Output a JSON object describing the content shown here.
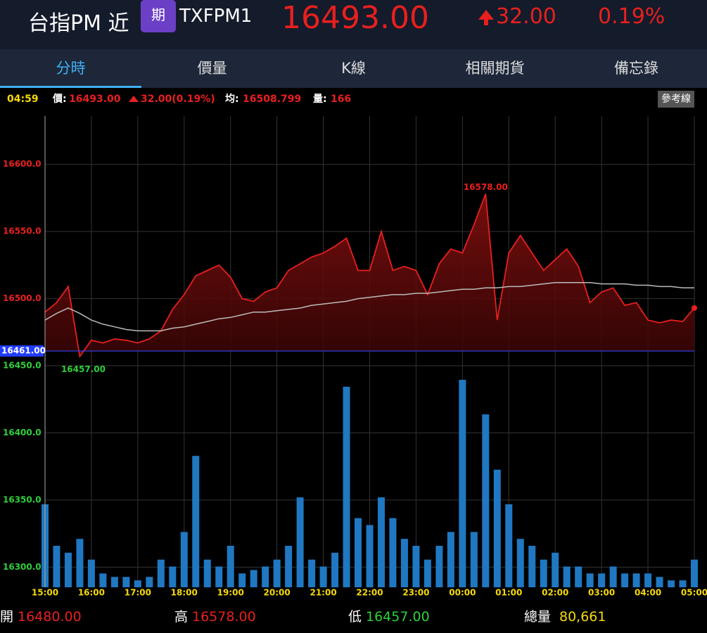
{
  "header": {
    "name": "台指PM 近",
    "badge": "期",
    "code": "TXFPM1",
    "price": "16493.00",
    "change": "32.00",
    "percent": "0.19%"
  },
  "tabs": [
    "分時",
    "價量",
    "K線",
    "相關期貨",
    "備忘錄"
  ],
  "info": {
    "time": "04:59",
    "price_label": "價:",
    "price": "16493.00",
    "change": "32.00(0.19%)",
    "avg_label": "均:",
    "avg": "16508.799",
    "vol_label": "量:",
    "vol": "166",
    "button": "參考線"
  },
  "chart_data": {
    "type": "line",
    "categories": [
      "15:00",
      null,
      null,
      null,
      "16:00",
      null,
      null,
      null,
      "17:00",
      null,
      null,
      null,
      "18:00",
      null,
      null,
      null,
      "19:00",
      null,
      null,
      null,
      "20:00",
      null,
      null,
      null,
      "21:00",
      null,
      null,
      null,
      "22:00",
      null,
      null,
      null,
      "23:00",
      null,
      null,
      null,
      "00:00",
      null,
      null,
      null,
      "01:00",
      null,
      null,
      null,
      "02:00",
      null,
      null,
      null,
      "03:00",
      null,
      null,
      null,
      "04:00",
      null,
      null,
      null,
      "05:00"
    ],
    "series": [
      {
        "color": "#e8201e",
        "values": [
          16490,
          16497,
          16509,
          16457,
          16469,
          16467,
          16470,
          16469,
          16467,
          16470,
          16476,
          16492,
          16503,
          16517,
          16521,
          16525,
          16516,
          16500,
          16498,
          16505,
          16508,
          16521,
          16526,
          16531,
          16534,
          16539,
          16545,
          16521,
          16521,
          16550,
          16521,
          16524,
          16521,
          16503,
          16526,
          16537,
          16534,
          16555,
          16578,
          16484,
          16534,
          16547,
          16534,
          16521,
          16529,
          16537,
          16524,
          16497,
          16505,
          16508,
          16495,
          16497,
          16484,
          16482,
          16484,
          16483,
          16493
        ]
      },
      {
        "color": "#bbbbbb",
        "values": [
          16484,
          16489,
          16493,
          16489,
          16484,
          16481,
          16479,
          16477,
          16476,
          16476,
          16476,
          16478,
          16479,
          16481,
          16483,
          16485,
          16486,
          16488,
          16490,
          16490,
          16491,
          16492,
          16493,
          16495,
          16496,
          16497,
          16498,
          16500,
          16501,
          16502,
          16503,
          16503,
          16504,
          16504,
          16505,
          16506,
          16507,
          16507,
          16508,
          16508,
          16509,
          16509,
          16510,
          16511,
          16512,
          16512,
          16512,
          16512,
          16511,
          16511,
          16511,
          16510,
          16510,
          16509,
          16509,
          16508,
          16508
        ]
      }
    ],
    "volume": {
      "color": "#1f78c1",
      "values": [
        120,
        60,
        50,
        70,
        40,
        20,
        15,
        15,
        10,
        15,
        40,
        30,
        80,
        190,
        40,
        30,
        60,
        20,
        25,
        30,
        40,
        60,
        130,
        40,
        30,
        50,
        290,
        100,
        90,
        130,
        100,
        70,
        60,
        40,
        60,
        80,
        300,
        80,
        250,
        170,
        120,
        70,
        60,
        40,
        50,
        30,
        30,
        20,
        20,
        30,
        20,
        20,
        20,
        15,
        10,
        10,
        40
      ]
    },
    "ylim": [
      16285,
      16636
    ],
    "yticks": [
      {
        "value": 16300,
        "label": "16300.0"
      },
      {
        "value": 16350,
        "label": "16350.0"
      },
      {
        "value": 16400,
        "label": "16400.0"
      },
      {
        "value": 16450,
        "label": "16450.0"
      },
      {
        "value": 16500,
        "label": "16500.0"
      },
      {
        "value": 16550,
        "label": "16550.0"
      },
      {
        "value": 16600,
        "label": "16600.0"
      }
    ],
    "reference": {
      "value": 16461,
      "label": "16461.00"
    },
    "max_label": "16578.00",
    "min_label": "16457.00",
    "grid": true
  },
  "footer": {
    "open_label": "開",
    "open": "16480.00",
    "high_label": "高",
    "high": "16578.00",
    "low_label": "低",
    "low": "16457.00",
    "total_label": "總量",
    "total": "80,661"
  }
}
